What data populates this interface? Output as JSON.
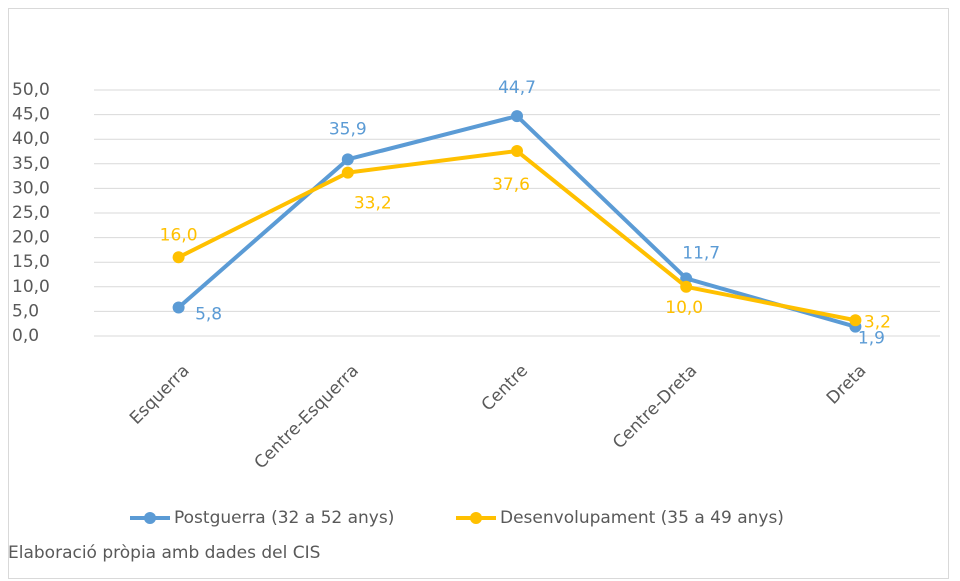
{
  "chart_data": {
    "type": "line",
    "categories": [
      "Esquerra",
      "Centre-Esquerra",
      "Centre",
      "Centre-Dreta",
      "Dreta"
    ],
    "series": [
      {
        "name": "Postguerra (32 a 52 anys)",
        "color": "#5b9bd5",
        "values": [
          5.8,
          35.9,
          44.7,
          11.7,
          1.9
        ],
        "value_labels": [
          "5,8",
          "35,9",
          "44,7",
          "11,7",
          "1,9"
        ]
      },
      {
        "name": "Desenvolupament (35 a 49 anys)",
        "color": "#ffc000",
        "values": [
          16.0,
          33.2,
          37.6,
          10.0,
          3.2
        ],
        "value_labels": [
          "16,0",
          "33,2",
          "37,6",
          "10,0",
          "3,2"
        ]
      }
    ],
    "ylim": [
      0,
      50
    ],
    "yticks": [
      {
        "value": 0,
        "label": "0,0"
      },
      {
        "value": 5,
        "label": "5,0"
      },
      {
        "value": 10,
        "label": "10,0"
      },
      {
        "value": 15,
        "label": "15,0"
      },
      {
        "value": 20,
        "label": "20,0"
      },
      {
        "value": 25,
        "label": "25,0"
      },
      {
        "value": 30,
        "label": "30,0"
      },
      {
        "value": 35,
        "label": "35,0"
      },
      {
        "value": 40,
        "label": "40,0"
      },
      {
        "value": 45,
        "label": "45,0"
      },
      {
        "value": 50,
        "label": "50,0"
      }
    ],
    "grid": true,
    "legend": "bottom",
    "source": "Elaboració pròpia amb dades del CIS"
  }
}
